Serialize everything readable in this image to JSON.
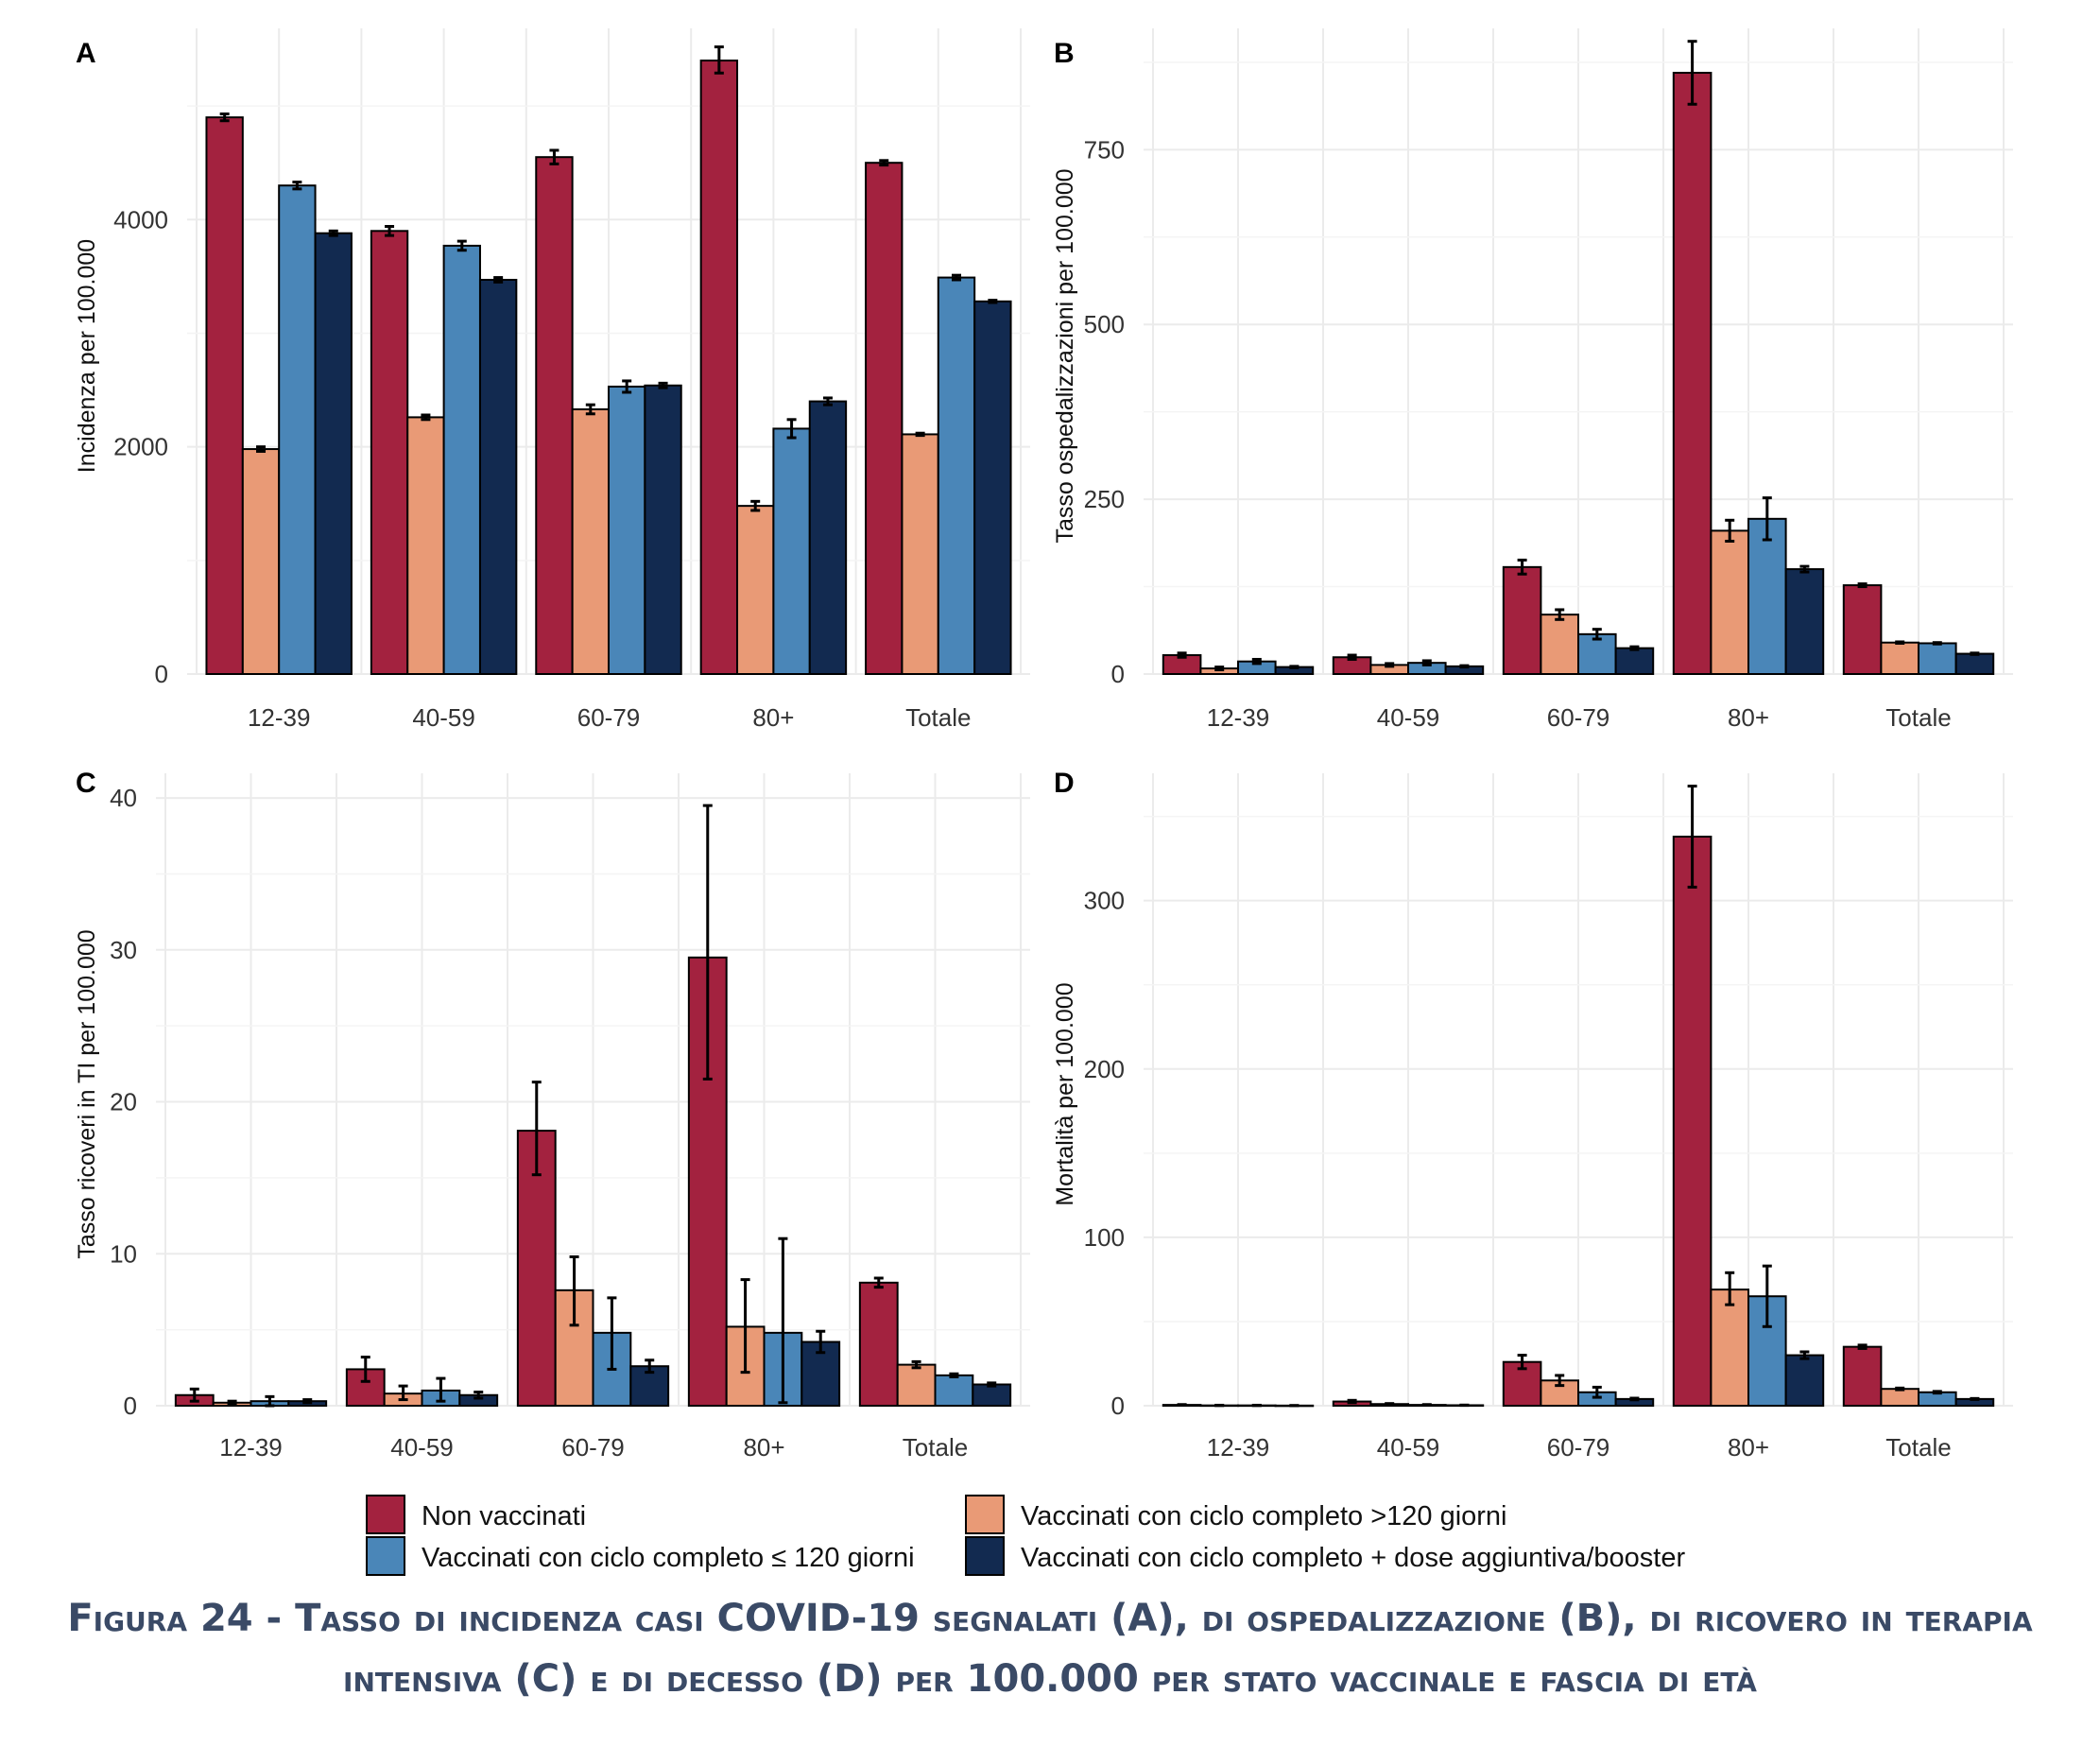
{
  "colors": {
    "non_vaccinati": "#a3223f",
    "ciclo_gt120": "#e99a76",
    "ciclo_le120": "#4a86b8",
    "booster": "#122a50",
    "grid": "#ebebeb",
    "caption": "#3a4a66"
  },
  "legend": [
    {
      "label": "Non vaccinati",
      "color": "#a3223f"
    },
    {
      "label": "Vaccinati con ciclo completo >120 giorni",
      "color": "#e99a76"
    },
    {
      "label": "Vaccinati con ciclo completo ≤ 120 giorni",
      "color": "#4a86b8"
    },
    {
      "label": "Vaccinati con ciclo completo + dose aggiuntiva/booster",
      "color": "#122a50"
    }
  ],
  "caption": "Figura 24 - Tasso di incidenza casi COVID-19 segnalati (A), di ospedalizzazione (B), di ricovero in terapia intensiva (C) e di decesso (D) per 100.000 per stato vaccinale e fascia di età",
  "chart_data": [
    {
      "panel": "A",
      "type": "bar",
      "ylabel": "Incidenza per 100.000",
      "categories": [
        "12-39",
        "40-59",
        "60-79",
        "80+",
        "Totale"
      ],
      "ylim": [
        0,
        5600
      ],
      "yticks": [
        0,
        2000,
        4000
      ],
      "series": [
        {
          "name": "Non vaccinati",
          "values": [
            4900,
            3900,
            4550,
            5400,
            4500
          ],
          "err": [
            [
              4870,
              4930
            ],
            [
              3860,
              3940
            ],
            [
              4490,
              4610
            ],
            [
              5290,
              5520
            ],
            [
              4480,
              4520
            ]
          ]
        },
        {
          "name": "Vaccinati con ciclo completo >120 giorni",
          "values": [
            1980,
            2260,
            2330,
            1480,
            2110
          ],
          "err": [
            [
              1960,
              2000
            ],
            [
              2240,
              2280
            ],
            [
              2290,
              2370
            ],
            [
              1440,
              1520
            ],
            [
              2100,
              2120
            ]
          ]
        },
        {
          "name": "Vaccinati con ciclo completo ≤ 120 giorni",
          "values": [
            4300,
            3770,
            2530,
            2160,
            3490
          ],
          "err": [
            [
              4270,
              4330
            ],
            [
              3730,
              3810
            ],
            [
              2480,
              2580
            ],
            [
              2080,
              2240
            ],
            [
              3470,
              3510
            ]
          ]
        },
        {
          "name": "Vaccinati con ciclo completo + dose aggiuntiva/booster",
          "values": [
            3880,
            3470,
            2540,
            2400,
            3280
          ],
          "err": [
            [
              3860,
              3900
            ],
            [
              3450,
              3490
            ],
            [
              2520,
              2560
            ],
            [
              2370,
              2430
            ],
            [
              3270,
              3290
            ]
          ]
        }
      ]
    },
    {
      "panel": "B",
      "type": "bar",
      "ylabel": "Tasso ospedalizzazioni per 100.000",
      "categories": [
        "12-39",
        "40-59",
        "60-79",
        "80+",
        "Totale"
      ],
      "ylim": [
        0,
        910
      ],
      "yticks": [
        0,
        250,
        500,
        750
      ],
      "series": [
        {
          "name": "Non vaccinati",
          "values": [
            27,
            24,
            153,
            860,
            127
          ],
          "err": [
            [
              24,
              30
            ],
            [
              21,
              27
            ],
            [
              143,
              163
            ],
            [
              815,
              905
            ],
            [
              125,
              129
            ]
          ]
        },
        {
          "name": "Vaccinati con ciclo completo >120 giorni",
          "values": [
            8,
            13,
            85,
            205,
            45
          ],
          "err": [
            [
              6,
              10
            ],
            [
              11,
              15
            ],
            [
              78,
              92
            ],
            [
              190,
              220
            ],
            [
              44,
              46
            ]
          ]
        },
        {
          "name": "Vaccinati con ciclo completo ≤ 120 giorni",
          "values": [
            18,
            16,
            57,
            222,
            44
          ],
          "err": [
            [
              15,
              21
            ],
            [
              13,
              19
            ],
            [
              50,
              64
            ],
            [
              192,
              252
            ],
            [
              43,
              45
            ]
          ]
        },
        {
          "name": "Vaccinati con ciclo completo + dose aggiuntiva/booster",
          "values": [
            10,
            11,
            37,
            150,
            29
          ],
          "err": [
            [
              9,
              11
            ],
            [
              10,
              12
            ],
            [
              35,
              39
            ],
            [
              146,
              154
            ],
            [
              28,
              30
            ]
          ]
        }
      ]
    },
    {
      "panel": "C",
      "type": "bar",
      "ylabel": "Tasso ricoveri in TI per 100.000",
      "categories": [
        "12-39",
        "40-59",
        "60-79",
        "80+",
        "Totale"
      ],
      "ylim": [
        0,
        41
      ],
      "yticks": [
        0,
        10,
        20,
        30,
        40
      ],
      "series": [
        {
          "name": "Non vaccinati",
          "values": [
            0.7,
            2.4,
            18.1,
            29.5,
            8.1
          ],
          "err": [
            [
              0.3,
              1.1
            ],
            [
              1.6,
              3.2
            ],
            [
              15.2,
              21.3
            ],
            [
              21.5,
              39.5
            ],
            [
              7.8,
              8.4
            ]
          ]
        },
        {
          "name": "Vaccinati con ciclo completo >120 giorni",
          "values": [
            0.2,
            0.8,
            7.6,
            5.2,
            2.7
          ],
          "err": [
            [
              0.1,
              0.3
            ],
            [
              0.4,
              1.3
            ],
            [
              5.3,
              9.8
            ],
            [
              2.2,
              8.3
            ],
            [
              2.5,
              2.9
            ]
          ]
        },
        {
          "name": "Vaccinati con ciclo completo ≤ 120 giorni",
          "values": [
            0.3,
            1.0,
            4.8,
            4.8,
            2.0
          ],
          "err": [
            [
              0.0,
              0.6
            ],
            [
              0.3,
              1.8
            ],
            [
              2.4,
              7.1
            ],
            [
              0.2,
              11.0
            ],
            [
              1.9,
              2.1
            ]
          ]
        },
        {
          "name": "Vaccinati con ciclo completo + dose aggiuntiva/booster",
          "values": [
            0.3,
            0.7,
            2.6,
            4.2,
            1.4
          ],
          "err": [
            [
              0.2,
              0.4
            ],
            [
              0.5,
              0.9
            ],
            [
              2.2,
              3.0
            ],
            [
              3.5,
              4.9
            ],
            [
              1.3,
              1.5
            ]
          ]
        }
      ]
    },
    {
      "panel": "D",
      "type": "bar",
      "ylabel": "Mortalità per 100.000",
      "categories": [
        "12-39",
        "40-59",
        "60-79",
        "80+",
        "Totale"
      ],
      "ylim": [
        0,
        370
      ],
      "yticks": [
        0,
        100,
        200,
        300
      ],
      "series": [
        {
          "name": "Non vaccinati",
          "values": [
            0.5,
            2.5,
            26,
            338,
            35
          ],
          "err": [
            [
              0.3,
              0.7
            ],
            [
              1.8,
              3.2
            ],
            [
              22,
              30
            ],
            [
              308,
              368
            ],
            [
              34,
              36
            ]
          ]
        },
        {
          "name": "Vaccinati con ciclo completo >120 giorni",
          "values": [
            0.2,
            1.0,
            15,
            69,
            10
          ],
          "err": [
            [
              0.1,
              0.3
            ],
            [
              0.7,
              1.3
            ],
            [
              12,
              18
            ],
            [
              60,
              79
            ],
            [
              9.5,
              10.5
            ]
          ]
        },
        {
          "name": "Vaccinati con ciclo completo ≤ 120 giorni",
          "values": [
            0.2,
            0.5,
            8,
            65,
            8
          ],
          "err": [
            [
              0.1,
              0.3
            ],
            [
              0.3,
              0.7
            ],
            [
              5,
              11
            ],
            [
              47,
              83
            ],
            [
              7.5,
              8.5
            ]
          ]
        },
        {
          "name": "Vaccinati con ciclo completo + dose aggiuntiva/booster",
          "values": [
            0.1,
            0.3,
            4,
            30,
            4
          ],
          "err": [
            [
              0.05,
              0.15
            ],
            [
              0.2,
              0.4
            ],
            [
              3.5,
              4.5
            ],
            [
              28,
              32
            ],
            [
              3.7,
              4.3
            ]
          ]
        }
      ]
    }
  ]
}
